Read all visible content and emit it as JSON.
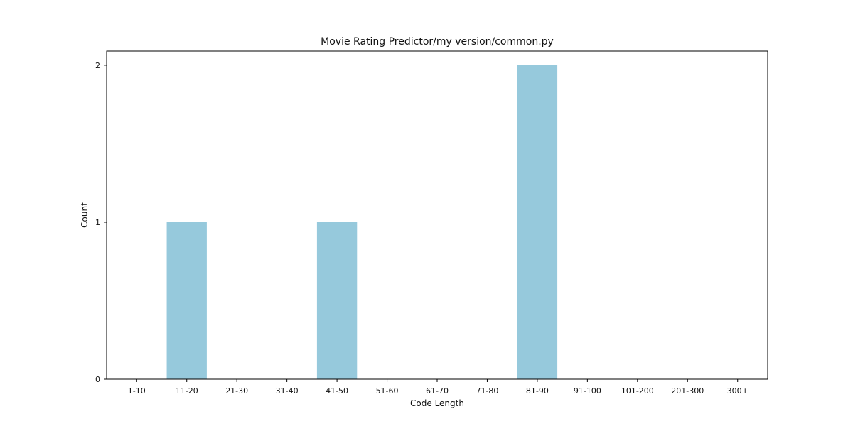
{
  "chart_data": {
    "type": "bar",
    "title": "Movie Rating Predictor/my version/common.py",
    "xlabel": "Code Length",
    "ylabel": "Count",
    "categories": [
      "1-10",
      "11-20",
      "21-30",
      "31-40",
      "41-50",
      "51-60",
      "61-70",
      "71-80",
      "81-90",
      "91-100",
      "101-200",
      "201-300",
      "300+"
    ],
    "values": [
      0,
      1,
      0,
      0,
      1,
      0,
      0,
      0,
      2,
      0,
      0,
      0,
      0
    ],
    "yticks": [
      "0",
      "1",
      "2"
    ],
    "ylim": [
      0,
      2.09
    ],
    "bar_color": "#96c9dc",
    "grid": false,
    "legend": "none"
  }
}
